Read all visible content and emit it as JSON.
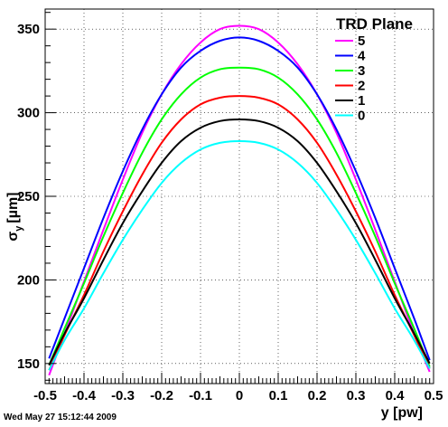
{
  "chart_data": {
    "type": "line",
    "title": "",
    "xlabel": "y [pw]",
    "ylabel": "σy [µm]",
    "ylabel_parts": {
      "main": "σ",
      "sub": "y",
      "unit": "[µm]"
    },
    "xlim": [
      -0.5,
      0.5
    ],
    "ylim": [
      138,
      362
    ],
    "x_ticks": [
      -0.5,
      -0.4,
      -0.3,
      -0.2,
      -0.1,
      0,
      0.1,
      0.2,
      0.3,
      0.4,
      0.5
    ],
    "x_tick_labels": [
      "-0.5",
      "-0.4",
      "-0.3",
      "-0.2",
      "-0.1",
      "0",
      "0.1",
      "0.2",
      "0.3",
      "0.4",
      "0.5"
    ],
    "y_ticks": [
      150,
      200,
      250,
      300,
      350
    ],
    "y_tick_labels": [
      "150",
      "200",
      "250",
      "300",
      "350"
    ],
    "grid": true,
    "legend": {
      "title": "TRD Plane",
      "placement": "top-right"
    },
    "x": [
      -0.49,
      -0.45,
      -0.4,
      -0.35,
      -0.3,
      -0.25,
      -0.2,
      -0.15,
      -0.1,
      -0.05,
      0,
      0.05,
      0.1,
      0.15,
      0.2,
      0.25,
      0.3,
      0.35,
      0.4,
      0.45,
      0.49
    ],
    "series": [
      {
        "name": "5",
        "color": "#ff00ff",
        "values": [
          143,
          168,
          199,
          230,
          260,
          288,
          311,
          329,
          342,
          350,
          352,
          350,
          342,
          329,
          311,
          288,
          260,
          230,
          199,
          168,
          145
        ]
      },
      {
        "name": "4",
        "color": "#0000ff",
        "values": [
          153,
          177,
          207,
          237,
          265,
          290,
          311,
          327,
          337,
          343,
          345,
          343,
          337,
          327,
          311,
          290,
          265,
          237,
          207,
          177,
          152
        ]
      },
      {
        "name": "3",
        "color": "#00ff00",
        "values": [
          149,
          171,
          198,
          226,
          252,
          276,
          296,
          311,
          321,
          326,
          327,
          326,
          321,
          311,
          296,
          276,
          252,
          226,
          198,
          171,
          148
        ]
      },
      {
        "name": "2",
        "color": "#ff0000",
        "values": [
          146,
          167,
          191,
          217,
          241,
          263,
          282,
          296,
          305,
          309,
          310,
          309,
          305,
          296,
          282,
          263,
          241,
          217,
          191,
          167,
          147
        ]
      },
      {
        "name": "1",
        "color": "#000000",
        "values": [
          149,
          168,
          189,
          212,
          234,
          253,
          270,
          283,
          291,
          295,
          296,
          295,
          291,
          283,
          270,
          253,
          234,
          212,
          189,
          168,
          150
        ]
      },
      {
        "name": "0",
        "color": "#00ffff",
        "values": [
          146,
          164,
          183,
          204,
          224,
          242,
          258,
          270,
          278,
          282,
          283,
          282,
          278,
          270,
          258,
          242,
          224,
          204,
          183,
          164,
          147
        ]
      }
    ]
  },
  "footer": {
    "timestamp": "Wed May 27 15:12:44 2009"
  }
}
